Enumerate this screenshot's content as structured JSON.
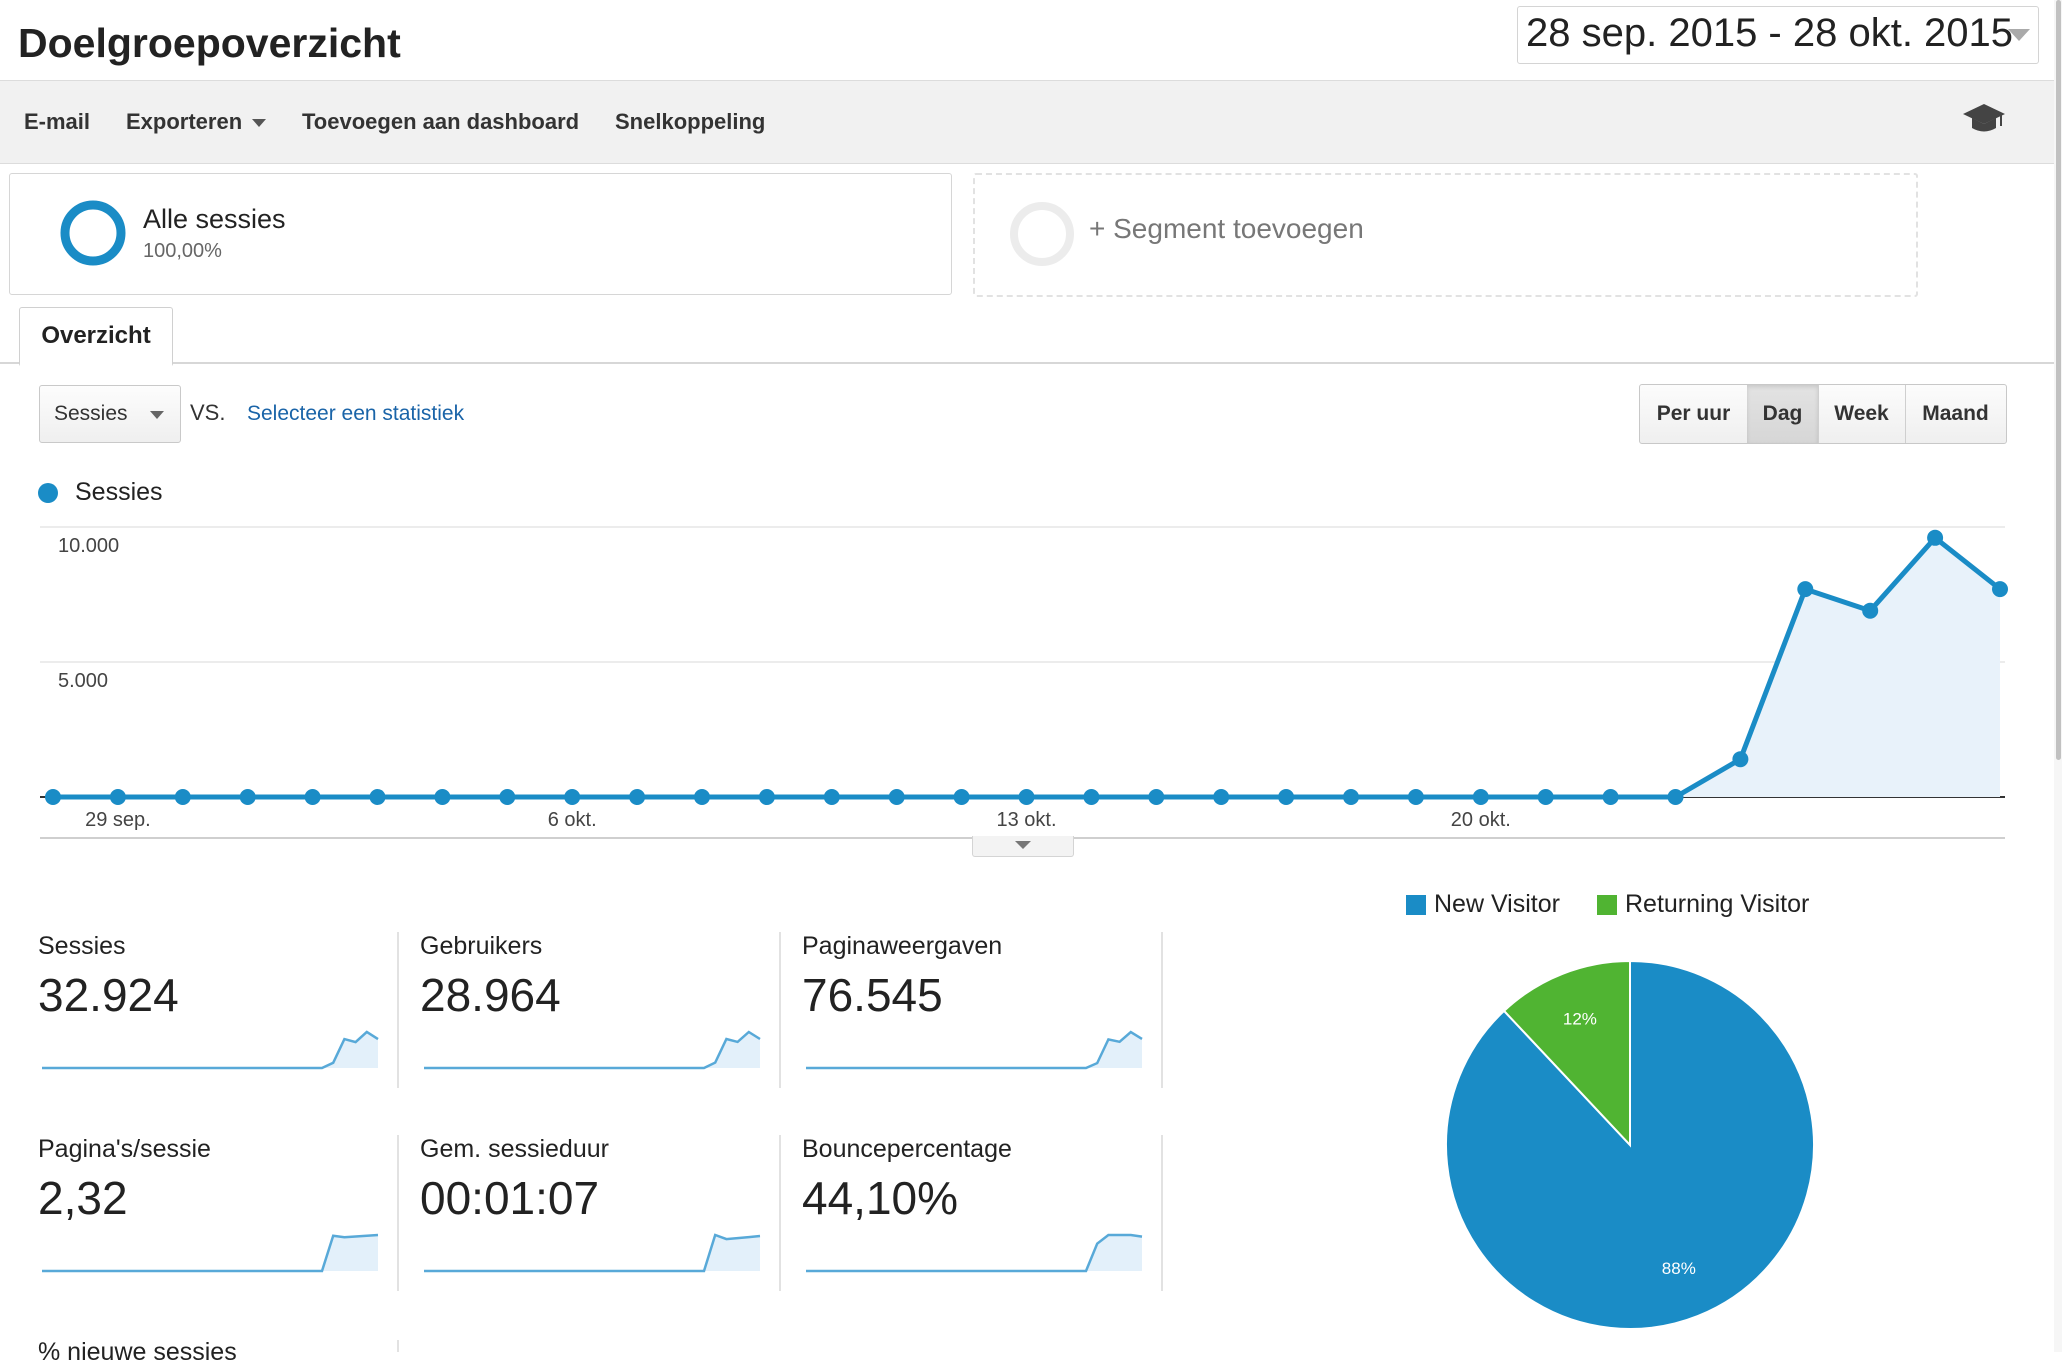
{
  "header": {
    "title": "Doelgroepoverzicht",
    "date_range": "28 sep. 2015 - 28 okt. 2015"
  },
  "toolbar": {
    "email_label": "E-mail",
    "export_label": "Exporteren",
    "add_dashboard_label": "Toevoegen aan dashboard",
    "shortcut_label": "Snelkoppeling",
    "help_icon": "graduation-cap-icon"
  },
  "segments": {
    "all_name": "Alle sessies",
    "all_pct": "100,00%",
    "add_label": "+ Segment toevoegen"
  },
  "tabs": {
    "overview_label": "Overzicht"
  },
  "controls": {
    "metric_selected": "Sessies",
    "vs_label": "VS.",
    "select_stat_link": "Selecteer een statistiek",
    "periods": [
      "Per uur",
      "Dag",
      "Week",
      "Maand"
    ],
    "active_period": "Dag"
  },
  "colors": {
    "accent": "#1a8cc6",
    "new_visitor": "#1a8cc6",
    "returning_visitor": "#50b432",
    "link": "#1a64a8"
  },
  "chart_data": [
    {
      "type": "line",
      "title": "",
      "xlabel": "",
      "ylabel": "",
      "series": [
        {
          "name": "Sessies",
          "values": [
            0,
            0,
            0,
            0,
            0,
            0,
            0,
            0,
            0,
            0,
            0,
            0,
            0,
            0,
            0,
            0,
            0,
            0,
            0,
            0,
            0,
            0,
            0,
            0,
            0,
            0,
            1400,
            7700,
            6900,
            9600,
            7700
          ]
        }
      ],
      "x": [
        "28 sep.",
        "29 sep.",
        "30 sep.",
        "1 okt.",
        "2 okt.",
        "3 okt.",
        "4 okt.",
        "5 okt.",
        "6 okt.",
        "7 okt.",
        "8 okt.",
        "9 okt.",
        "10 okt.",
        "11 okt.",
        "12 okt.",
        "13 okt.",
        "14 okt.",
        "15 okt.",
        "16 okt.",
        "17 okt.",
        "18 okt.",
        "19 okt.",
        "20 okt.",
        "21 okt.",
        "22 okt.",
        "23 okt.",
        "24 okt.",
        "25 okt.",
        "26 okt.",
        "27 okt.",
        "28 okt."
      ],
      "x_tick_labels": [
        "29 sep.",
        "6 okt.",
        "13 okt.",
        "20 okt."
      ],
      "x_tick_index": [
        1,
        8,
        15,
        22
      ],
      "y_tick_labels": [
        "5.000",
        "10.000"
      ],
      "y_tick_values": [
        5000,
        10000
      ],
      "ylim": [
        0,
        10000
      ],
      "grid": true,
      "legend": "top-left"
    },
    {
      "type": "pie",
      "title": "",
      "categories": [
        "New Visitor",
        "Returning Visitor"
      ],
      "values": [
        88,
        12
      ],
      "value_labels": [
        "88%",
        "12%"
      ],
      "legend": "top"
    }
  ],
  "scorecards": [
    {
      "label": "Sessies",
      "value": "32.924",
      "trend": [
        0,
        0,
        0,
        0,
        0,
        0,
        0,
        0,
        0,
        0,
        0,
        0,
        0,
        0,
        0,
        0,
        0,
        0,
        0,
        0,
        0,
        0,
        0,
        0,
        0,
        0,
        1400,
        7700,
        6900,
        9600,
        7700
      ]
    },
    {
      "label": "Gebruikers",
      "value": "28.964",
      "trend": [
        0,
        0,
        0,
        0,
        0,
        0,
        0,
        0,
        0,
        0,
        0,
        0,
        0,
        0,
        0,
        0,
        0,
        0,
        0,
        0,
        0,
        0,
        0,
        0,
        0,
        0,
        1300,
        7000,
        6300,
        8700,
        7000
      ]
    },
    {
      "label": "Paginaweergaven",
      "value": "76.545",
      "trend": [
        0,
        0,
        0,
        0,
        0,
        0,
        0,
        0,
        0,
        0,
        0,
        0,
        0,
        0,
        0,
        0,
        0,
        0,
        0,
        0,
        0,
        0,
        0,
        0,
        0,
        0,
        3000,
        17500,
        16000,
        22000,
        17800
      ]
    },
    {
      "label": "Pagina's/sessie",
      "value": "2,32",
      "trend": [
        0,
        0,
        0,
        0,
        0,
        0,
        0,
        0,
        0,
        0,
        0,
        0,
        0,
        0,
        0,
        0,
        0,
        0,
        0,
        0,
        0,
        0,
        0,
        0,
        0,
        0,
        2.3,
        2.2,
        2.25,
        2.3,
        2.35
      ]
    },
    {
      "label": "Gem. sessieduur",
      "value": "00:01:07",
      "trend": [
        0,
        0,
        0,
        0,
        0,
        0,
        0,
        0,
        0,
        0,
        0,
        0,
        0,
        0,
        0,
        0,
        0,
        0,
        0,
        0,
        0,
        0,
        0,
        0,
        0,
        0,
        70,
        62,
        64,
        66,
        68
      ]
    },
    {
      "label": "Bouncepercentage",
      "value": "44,10%",
      "trend": [
        0,
        0,
        0,
        0,
        0,
        0,
        0,
        0,
        0,
        0,
        0,
        0,
        0,
        0,
        0,
        0,
        0,
        0,
        0,
        0,
        0,
        0,
        0,
        0,
        0,
        0,
        35,
        46,
        46,
        46,
        44
      ]
    }
  ],
  "more_metric_label": "% nieuwe sessies"
}
